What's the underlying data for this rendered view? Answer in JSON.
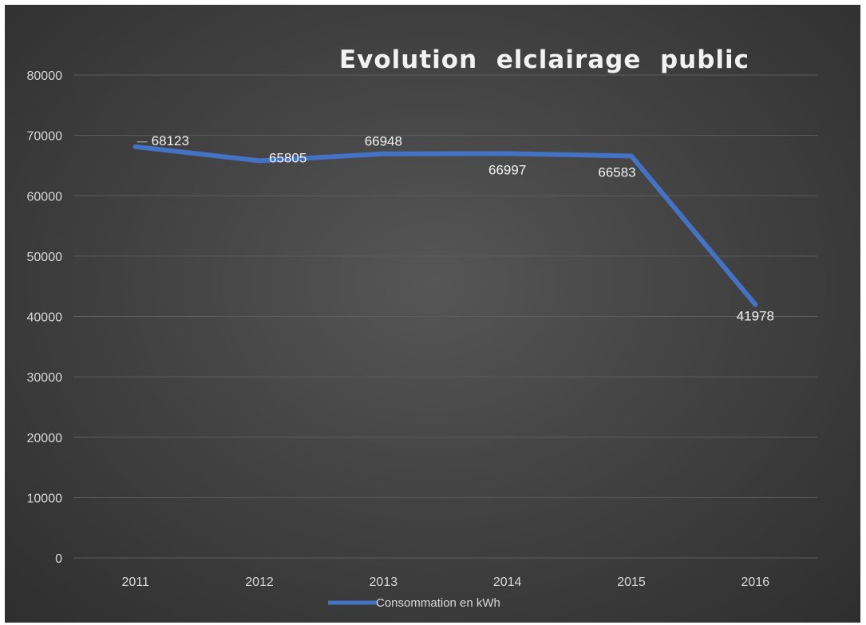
{
  "chart_data": {
    "type": "line",
    "title": "Evolution  elclairage  public",
    "categories": [
      "2011",
      "2012",
      "2013",
      "2014",
      "2015",
      "2016"
    ],
    "series": [
      {
        "name": "Consommation en kWh",
        "values": [
          68123,
          65805,
          66948,
          66997,
          66583,
          41978
        ],
        "color": "#4472c4"
      }
    ],
    "ylim": [
      0,
      80000
    ],
    "yticks": [
      "0",
      "10000",
      "20000",
      "30000",
      "40000",
      "50000",
      "60000",
      "70000",
      "80000"
    ],
    "xlabel": "",
    "ylabel": "",
    "grid": true,
    "legend_position": "bottom",
    "background": "#404040"
  }
}
